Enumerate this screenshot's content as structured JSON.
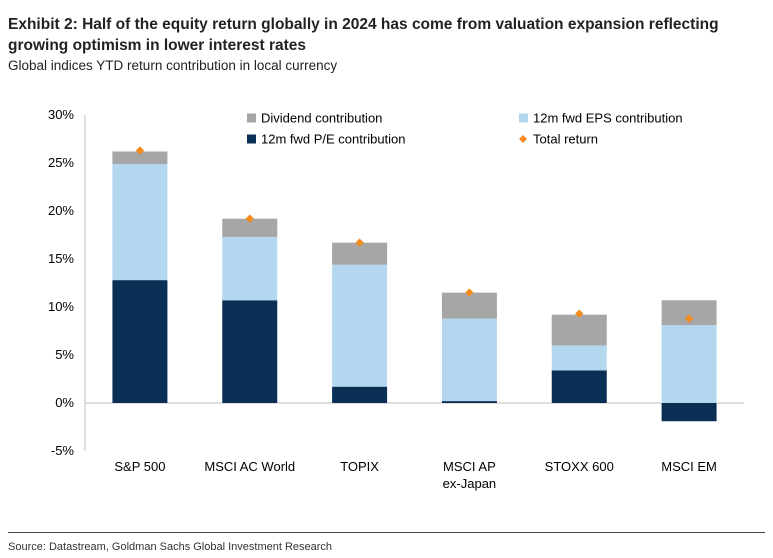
{
  "header": {
    "title": "Exhibit 2: Half of the equity return globally in 2024 has come from valuation expansion reflecting growing optimism in lower interest rates",
    "subtitle": "Global indices YTD return contribution in local currency"
  },
  "footer": {
    "source": "Source: Datastream, Goldman Sachs Global Investment Research"
  },
  "colors": {
    "dividend": "#a6a6a6",
    "eps": "#b4d7f0",
    "pe": "#0a2f55",
    "total": "#f28c1e",
    "axis": "#bfbfbf"
  },
  "chart_data": {
    "type": "bar",
    "stacked": true,
    "categories": [
      [
        "S&P 500"
      ],
      [
        "MSCI AC World"
      ],
      [
        "TOPIX"
      ],
      [
        "MSCI AP",
        "ex-Japan"
      ],
      [
        "STOXX 600"
      ],
      [
        "MSCI EM"
      ]
    ],
    "series": [
      {
        "key": "pe",
        "name": "12m fwd P/E contribution",
        "values": [
          12.8,
          10.7,
          1.7,
          0.2,
          3.4,
          -1.9
        ]
      },
      {
        "key": "eps",
        "name": "12m fwd EPS contribution",
        "values": [
          12.1,
          6.6,
          12.7,
          8.6,
          2.6,
          8.1
        ]
      },
      {
        "key": "dividend",
        "name": "Dividend contribution",
        "values": [
          1.3,
          1.9,
          2.3,
          2.7,
          3.2,
          2.6
        ]
      }
    ],
    "total_return": {
      "name": "Total return",
      "values": [
        26.3,
        19.2,
        16.7,
        11.5,
        9.3,
        8.8
      ]
    },
    "y_ticks": [
      "30%",
      "25%",
      "20%",
      "15%",
      "10%",
      "5%",
      "0%",
      "-5%"
    ],
    "y_tick_values": [
      30,
      25,
      20,
      15,
      10,
      5,
      0,
      -5
    ],
    "ylim": [
      -5,
      30
    ],
    "xlabel": "",
    "ylabel": "",
    "legend": [
      {
        "key": "dividend",
        "label": "Dividend contribution",
        "marker": "square"
      },
      {
        "key": "eps",
        "label": "12m fwd EPS contribution",
        "marker": "square"
      },
      {
        "key": "pe",
        "label": "12m fwd P/E contribution",
        "marker": "square"
      },
      {
        "key": "total",
        "label": "Total return",
        "marker": "diamond"
      }
    ],
    "legend_position": "top"
  }
}
